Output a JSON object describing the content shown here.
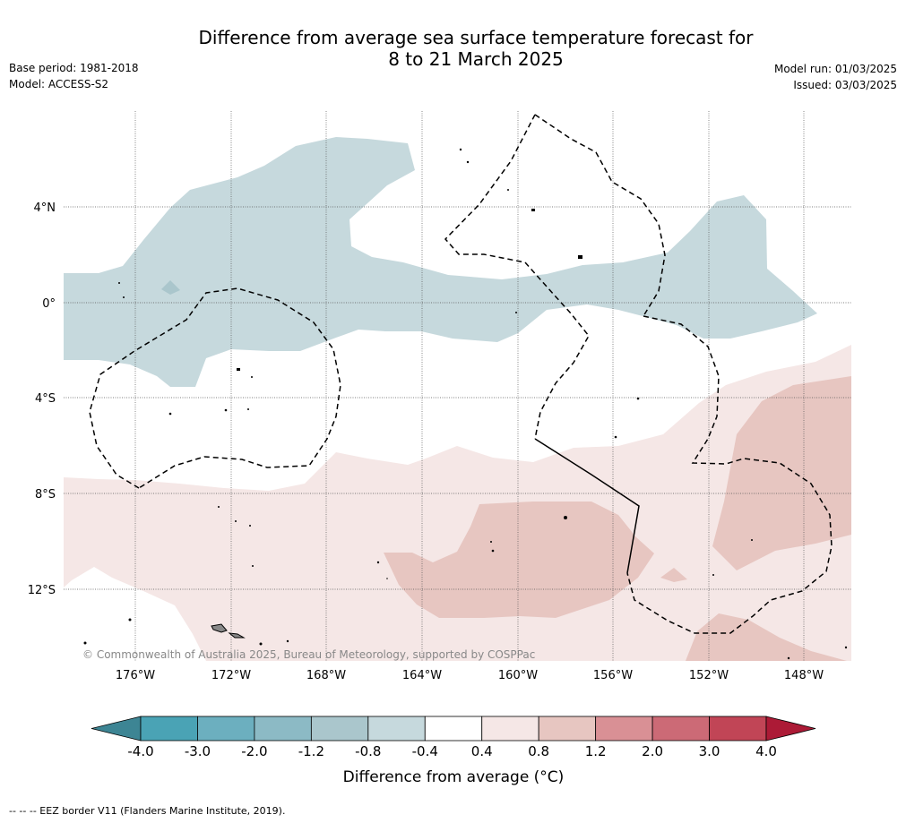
{
  "title_line1": "Difference from average sea surface temperature forecast for",
  "title_line2": "8 to 21 March 2025",
  "base_period": "Base period: 1981-2018",
  "model": "Model: ACCESS-S2",
  "model_run": "Model run: 01/03/2025",
  "issued": "Issued: 03/03/2025",
  "copyright": "© Commonwealth of Australia 2025, Bureau of Meteorology, supported by COSPPac",
  "lat_labels": [
    "4°N",
    "0°",
    "4°S",
    "8°S",
    "12°S"
  ],
  "lon_labels": [
    "176°W",
    "172°W",
    "168°W",
    "164°W",
    "160°W",
    "156°W",
    "152°W",
    "148°W"
  ],
  "colorbar": {
    "ticks": [
      "-4.0",
      "-3.0",
      "-2.0",
      "-1.2",
      "-0.8",
      "-0.4",
      "0.4",
      "0.8",
      "1.2",
      "2.0",
      "3.0",
      "4.0"
    ],
    "colors": [
      "#4aa3b5",
      "#6cafbf",
      "#8cbac5",
      "#aac6cc",
      "#c6d9dd",
      "#ffffff",
      "#f5e7e6",
      "#e7c6c1",
      "#d99095",
      "#cc6a76",
      "#c14556"
    ],
    "under_color": "#3d8594",
    "over_color": "#ac1a36",
    "label": "Difference from average (°C)"
  },
  "legend_note": "--  --  -- EEZ border V11 (Flanders Marine Institute, 2019)."
}
